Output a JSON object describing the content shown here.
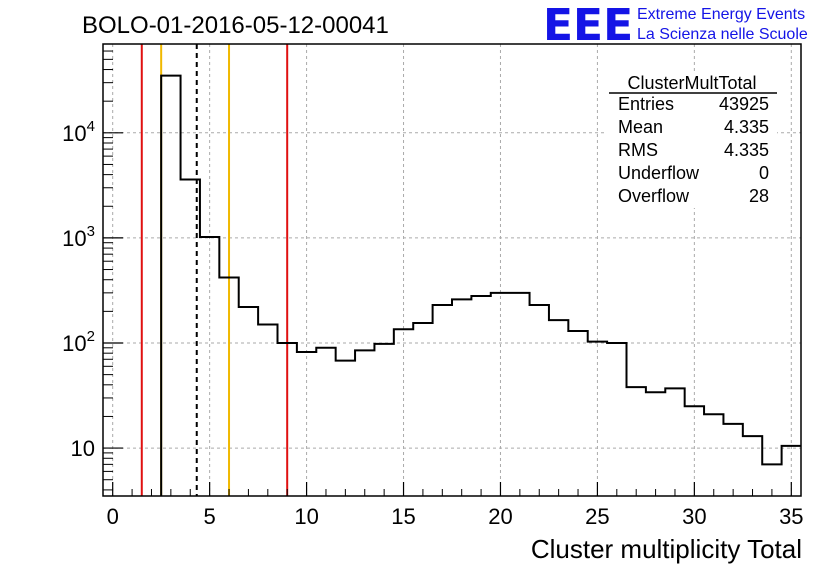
{
  "chart_data": {
    "type": "histogram",
    "title": "BOLO-01-2016-05-12-00041",
    "xlabel": "Cluster multiplicity Total",
    "ylabel": "",
    "xlim": [
      -0.5,
      35.5
    ],
    "ylim": [
      3.5,
      70000
    ],
    "yscale": "log",
    "grid": true,
    "x_ticks": [
      0,
      5,
      10,
      15,
      20,
      25,
      30,
      35
    ],
    "x_tick_labels": [
      "0",
      "5",
      "10",
      "15",
      "20",
      "25",
      "30",
      "35"
    ],
    "y_ticks": [
      {
        "value": 10,
        "base": "10",
        "exp": ""
      },
      {
        "value": 100,
        "base": "10",
        "exp": "2"
      },
      {
        "value": 1000,
        "base": "10",
        "exp": "3"
      },
      {
        "value": 10000,
        "base": "10",
        "exp": "4"
      }
    ],
    "bin_edges": [
      -0.5,
      0.5,
      1.5,
      2.5,
      3.5,
      4.5,
      5.5,
      6.5,
      7.5,
      8.5,
      9.5,
      10.5,
      11.5,
      12.5,
      13.5,
      14.5,
      15.5,
      16.5,
      17.5,
      18.5,
      19.5,
      20.5,
      21.5,
      22.5,
      23.5,
      24.5,
      25.5,
      26.5,
      27.5,
      28.5,
      29.5,
      30.5,
      31.5,
      32.5,
      33.5,
      34.5,
      35.5
    ],
    "bin_values": [
      0,
      0,
      0,
      35000,
      3600,
      1020,
      420,
      220,
      150,
      100,
      82,
      90,
      68,
      85,
      98,
      135,
      155,
      230,
      260,
      280,
      300,
      300,
      230,
      165,
      130,
      103,
      100,
      38,
      34,
      37,
      25,
      21,
      17,
      13,
      7,
      10.5
    ],
    "vertical_lines": [
      {
        "x": 1.5,
        "color": "#e01010",
        "style": "solid"
      },
      {
        "x": 2.5,
        "color": "#f0b800",
        "style": "solid"
      },
      {
        "x": 4.335,
        "color": "#000000",
        "style": "dashed"
      },
      {
        "x": 6,
        "color": "#f0b800",
        "style": "solid"
      },
      {
        "x": 9,
        "color": "#e01010",
        "style": "solid"
      }
    ],
    "stats": {
      "name": "ClusterMultTotal",
      "rows": [
        {
          "label": "Entries",
          "value": "43925"
        },
        {
          "label": "Mean",
          "value": "4.335"
        },
        {
          "label": "RMS",
          "value": "4.335"
        },
        {
          "label": "Underflow",
          "value": "0"
        },
        {
          "label": "Overflow",
          "value": "28"
        }
      ]
    }
  },
  "logo": {
    "letters": "EEE",
    "line1": "Extreme Energy Events",
    "line2": "La Scienza nelle Scuole",
    "color": "#1414e6"
  }
}
